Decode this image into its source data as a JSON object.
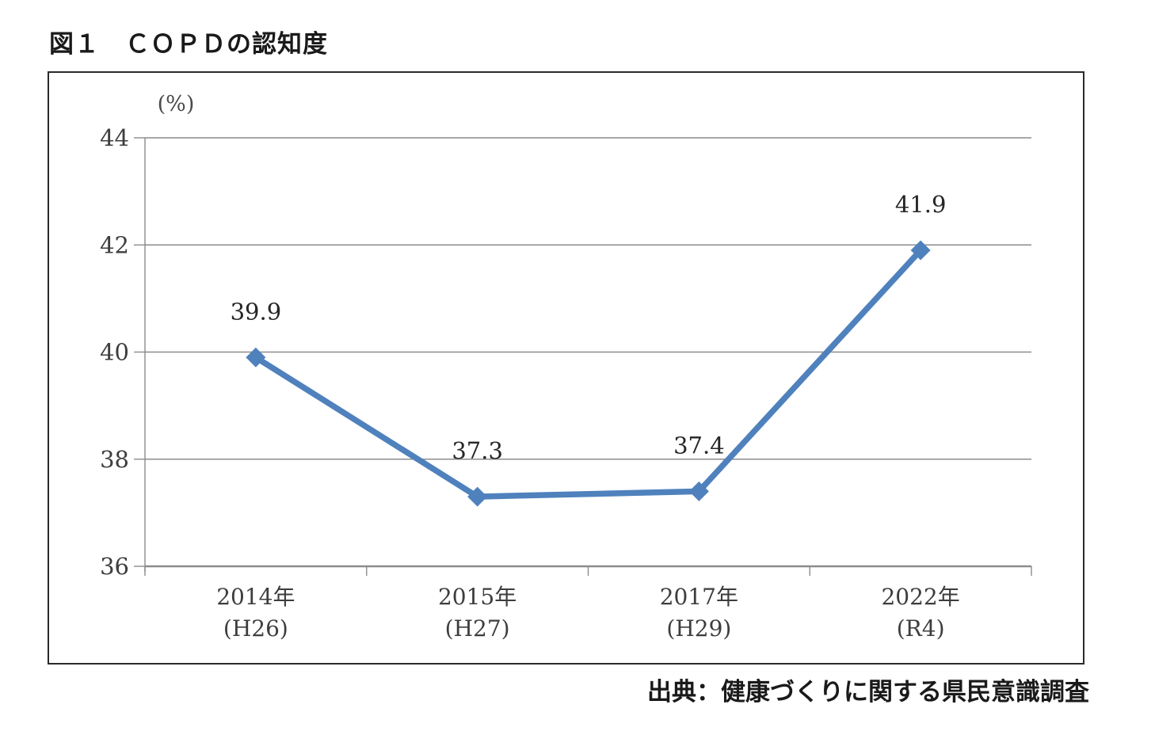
{
  "figure": {
    "title": "図１　ＣＯＰＤの認知度",
    "source": "出典：健康づくりに関する県民意識調査"
  },
  "chart_data": {
    "type": "line",
    "title": "ＣＯＰＤの認知度",
    "unit_label": "(%)",
    "categories": [
      "2014年",
      "2015年",
      "2017年",
      "2022年"
    ],
    "category_sublabels": [
      "(H26)",
      "(H27)",
      "(H29)",
      "(R4)"
    ],
    "series": [
      {
        "name": "ＣＯＰＤの認知度",
        "values": [
          39.9,
          37.3,
          37.4,
          41.9
        ]
      }
    ],
    "data_labels": [
      "39.9",
      "37.3",
      "37.4",
      "41.9"
    ],
    "ylim": [
      36,
      44
    ],
    "yticks": [
      44,
      42,
      40,
      38,
      36
    ],
    "grid": "horizontal",
    "legend": "none",
    "marker": "diamond",
    "colors": {
      "line": "#4F81BD",
      "marker": "#4F81BD",
      "grid": "#8C8C8C",
      "axis": "#8C8C8C",
      "tick_label": "#3D3D3D",
      "data_label": "#262626",
      "unit_label": "#4A4A4A"
    }
  }
}
